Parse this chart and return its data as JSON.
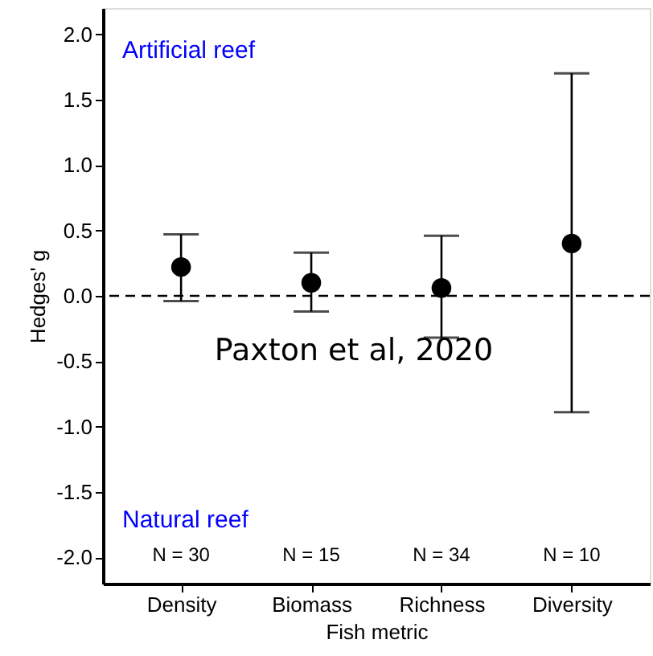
{
  "chart_data": {
    "type": "scatter",
    "xlabel": "Fish metric",
    "ylabel": "Hedges' g",
    "categories": [
      "Density",
      "Biomass",
      "Richness",
      "Diversity"
    ],
    "series": [
      {
        "color": "#000000",
        "values": [
          0.22,
          0.1,
          0.06,
          0.4
        ],
        "errors": [
          [
            -0.04,
            0.47
          ],
          [
            -0.12,
            0.33
          ],
          [
            -0.32,
            0.46
          ],
          [
            -0.89,
            1.7
          ]
        ]
      }
    ],
    "marker": "circle",
    "ylim": [
      -2.2,
      2.2
    ],
    "yticks": [
      {
        "value": -2,
        "label": "-2.0"
      },
      {
        "value": -1.5,
        "label": "-1.5"
      },
      {
        "value": -1,
        "label": "-1.0"
      },
      {
        "value": -0.5,
        "label": "-0.5"
      },
      {
        "value": 0,
        "label": "0.0"
      },
      {
        "value": 0.5,
        "label": "0.5"
      },
      {
        "value": 1,
        "label": "1.0"
      },
      {
        "value": 1.5,
        "label": "1.5"
      },
      {
        "value": 2,
        "label": "2.0"
      }
    ],
    "ref_lines": [
      {
        "axis": "y",
        "value": 0,
        "line_style": "dashed",
        "color": "#000000"
      }
    ],
    "grid": false,
    "annotations": [
      "Artificial reef",
      "Natural reef",
      "Paxton et al, 2020",
      "N = 30",
      "N = 15",
      "N = 34",
      "N = 10"
    ]
  }
}
